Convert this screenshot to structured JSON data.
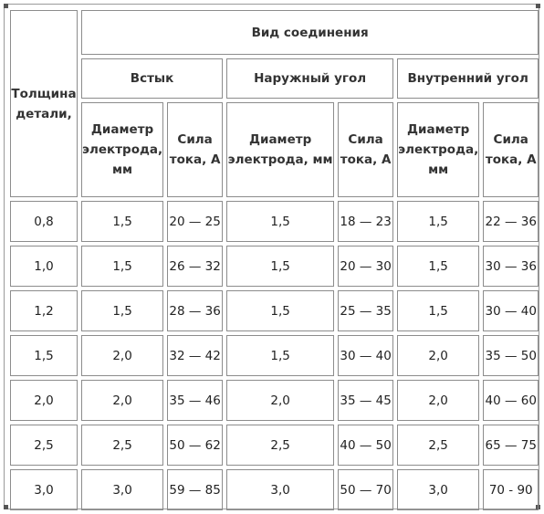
{
  "header": {
    "thickness": "Толщина детали,",
    "joint_type": "Вид соединения",
    "groups": [
      "Встык",
      "Наружный угол",
      "Внутренний угол"
    ],
    "electrode_diameter_1": "Диаметр электрода, мм",
    "current_1": "Сила тока, А",
    "electrode_diameter_2": "Диаметр электрода, мм",
    "current_2": "Сила тока, А",
    "electrode_diameter_3": "Диаметр электрода, мм",
    "current_3": "Сила тока, А"
  },
  "rows": [
    [
      "0,8",
      "1,5",
      "20 — 25",
      "1,5",
      "18 — 23",
      "1,5",
      "22 — 36"
    ],
    [
      "1,0",
      "1,5",
      "26 — 32",
      "1,5",
      "20 — 30",
      "1,5",
      "30 — 36"
    ],
    [
      "1,2",
      "1,5",
      "28 — 36",
      "1,5",
      "25 — 35",
      "1,5",
      "30 — 40"
    ],
    [
      "1,5",
      "2,0",
      "32 — 42",
      "1,5",
      "30 — 40",
      "2,0",
      "35 — 50"
    ],
    [
      "2,0",
      "2,0",
      "35 — 46",
      "2,0",
      "35 — 45",
      "2,0",
      "40 — 60"
    ],
    [
      "2,5",
      "2,5",
      "50 — 62",
      "2,5",
      "40 — 50",
      "2,5",
      "65 — 75"
    ],
    [
      "3,0",
      "3,0",
      "59 — 85",
      "3,0",
      "50 — 70",
      "3,0",
      "70 - 90"
    ]
  ]
}
